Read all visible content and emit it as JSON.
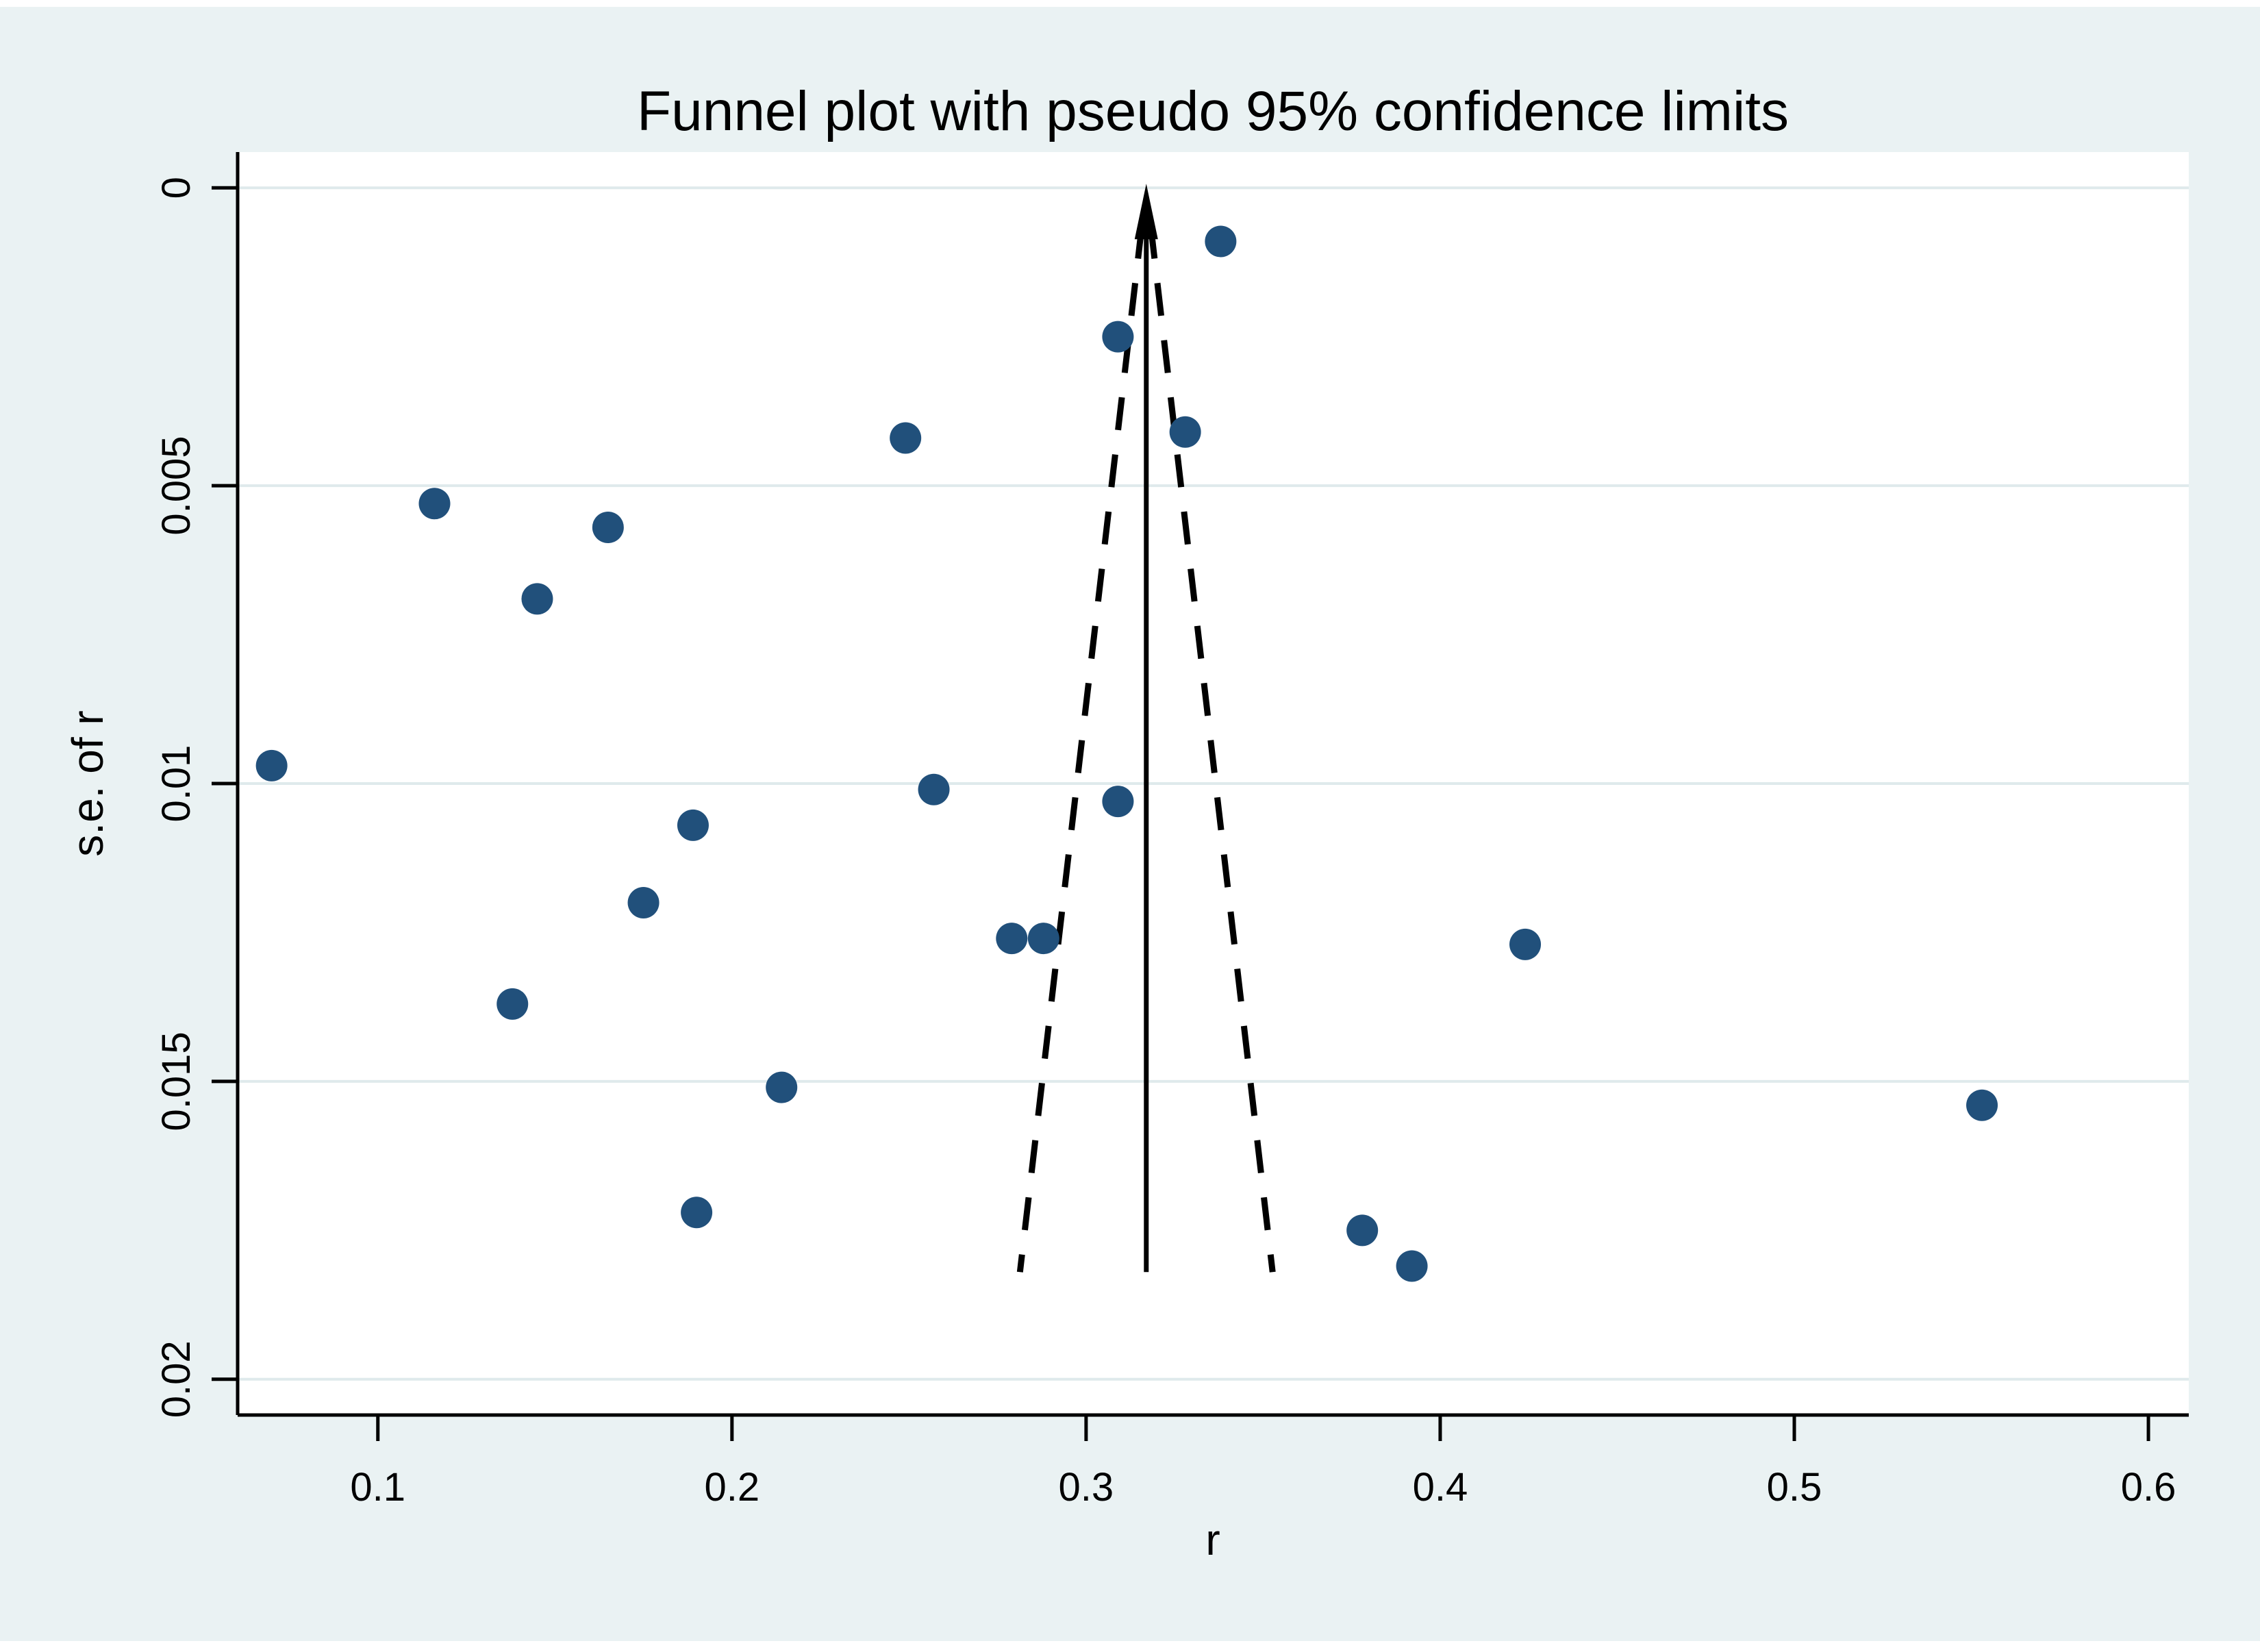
{
  "page": {
    "background_color": "#eaf2f3",
    "plot_background_color": "#ffffff"
  },
  "chart_data": {
    "type": "scatter",
    "title": "Funnel plot with pseudo 95% confidence limits",
    "xlabel": "r",
    "ylabel": "s.e. of r",
    "x_tick_values": [
      0.1,
      0.2,
      0.3,
      0.4,
      0.5,
      0.6
    ],
    "x_tick_labels": [
      "0.1",
      "0.2",
      "0.3",
      "0.4",
      "0.5",
      "0.6"
    ],
    "y_tick_values": [
      0,
      0.005,
      0.01,
      0.015,
      0.02
    ],
    "y_tick_labels": [
      "0",
      "0.005",
      "0.01",
      "0.015",
      "0.02"
    ],
    "xlim": [
      0.0604,
      0.6114
    ],
    "ylim": [
      -0.0006,
      0.0206
    ],
    "y_axis_reversed_note": "se axis runs 0 at top to 0.02 at bottom",
    "grid": "horizontal",
    "legend": "none",
    "center_line": {
      "x": 0.317,
      "from_se": 0.0008,
      "to_se": 0.0182,
      "style": "solid",
      "arrow": "up-to-zero"
    },
    "pseudo_ci": {
      "center": 0.317,
      "multiplier": 1.96,
      "from_se": 0.00064,
      "to_se": 0.0182,
      "style": "dashed"
    },
    "points": [
      {
        "r": 0.338,
        "se": 0.0009
      },
      {
        "r": 0.309,
        "se": 0.0025
      },
      {
        "r": 0.328,
        "se": 0.0041
      },
      {
        "r": 0.249,
        "se": 0.0042
      },
      {
        "r": 0.116,
        "se": 0.0053
      },
      {
        "r": 0.165,
        "se": 0.0057
      },
      {
        "r": 0.145,
        "se": 0.0069
      },
      {
        "r": 0.07,
        "se": 0.0097
      },
      {
        "r": 0.257,
        "se": 0.0101
      },
      {
        "r": 0.309,
        "se": 0.0103
      },
      {
        "r": 0.189,
        "se": 0.0107
      },
      {
        "r": 0.175,
        "se": 0.012
      },
      {
        "r": 0.279,
        "se": 0.0126
      },
      {
        "r": 0.288,
        "se": 0.0126
      },
      {
        "r": 0.424,
        "se": 0.0127
      },
      {
        "r": 0.138,
        "se": 0.0137
      },
      {
        "r": 0.214,
        "se": 0.0151
      },
      {
        "r": 0.553,
        "se": 0.0154
      },
      {
        "r": 0.19,
        "se": 0.0172
      },
      {
        "r": 0.378,
        "se": 0.0175
      },
      {
        "r": 0.392,
        "se": 0.0181
      }
    ],
    "colors": {
      "marker": "#21507b",
      "axis": "#000000",
      "gridline": "#dfeaec",
      "line": "#000000",
      "background": "#eaf2f3",
      "plot_background": "#ffffff"
    }
  }
}
